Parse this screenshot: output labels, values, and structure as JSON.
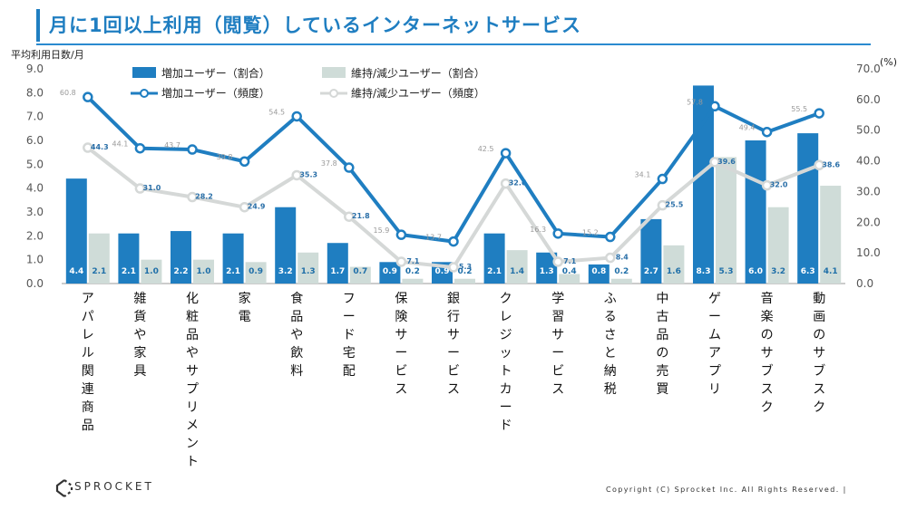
{
  "header": {
    "title": "月に1回以上利用（閲覧）しているインターネットサービス"
  },
  "footer": {
    "logo": "SPROCKET",
    "copyright": "Copyright (C) Sprocket Inc. All Rights Reserved. |"
  },
  "colors": {
    "increase": "#1f7ec1",
    "decrease_bar": "#cfdcd8",
    "decrease_line": "#d5d8d7"
  },
  "chart_data": {
    "type": "bar",
    "title": "",
    "ylabel_left": "平均利用日数/月",
    "ylabel_right": "(%)",
    "ylim_left": [
      0,
      9
    ],
    "ylim_right": [
      0,
      70
    ],
    "yticks_left": [
      "0.0",
      "1.0",
      "2.0",
      "3.0",
      "4.0",
      "5.0",
      "6.0",
      "7.0",
      "8.0",
      "9.0"
    ],
    "yticks_right": [
      "0.0",
      "10.0",
      "20.0",
      "30.0",
      "40.0",
      "50.0",
      "60.0",
      "70.0"
    ],
    "legend_position": "top",
    "categories": [
      "アパレル関連商品",
      "雑貨や家具",
      "化粧品やサプリメント",
      "家電",
      "食品や飲料",
      "フード宅配",
      "保険サービス",
      "銀行サービス",
      "クレジットカード",
      "学習サービス",
      "ふるさと納税",
      "中古品の売買",
      "ゲームアプリ",
      "音楽のサブスク",
      "動画のサブスク"
    ],
    "series": [
      {
        "name": "増加ユーザー（割合）",
        "kind": "bar",
        "axis": "left",
        "values": [
          4.4,
          2.1,
          2.2,
          2.1,
          3.2,
          1.7,
          0.9,
          0.9,
          2.1,
          1.3,
          0.8,
          2.7,
          8.3,
          6.0,
          6.3
        ]
      },
      {
        "name": "維持/減少ユーザー（割合）",
        "kind": "bar",
        "axis": "left",
        "values": [
          2.1,
          1.0,
          1.0,
          0.9,
          1.3,
          0.7,
          0.2,
          0.2,
          1.4,
          0.4,
          0.2,
          1.6,
          5.3,
          3.2,
          4.1
        ]
      },
      {
        "name": "増加ユーザー（頻度）",
        "kind": "line",
        "axis": "right",
        "values": [
          60.8,
          44.1,
          43.7,
          39.8,
          54.5,
          37.8,
          15.9,
          13.7,
          42.5,
          16.3,
          15.2,
          34.1,
          57.8,
          49.4,
          55.5
        ]
      },
      {
        "name": "維持/減少ユーザー（頻度）",
        "kind": "line",
        "axis": "right",
        "values": [
          44.3,
          31.0,
          28.2,
          24.9,
          35.3,
          21.8,
          7.1,
          5.3,
          32.6,
          7.1,
          8.4,
          25.5,
          39.6,
          32.0,
          38.6
        ]
      }
    ]
  }
}
